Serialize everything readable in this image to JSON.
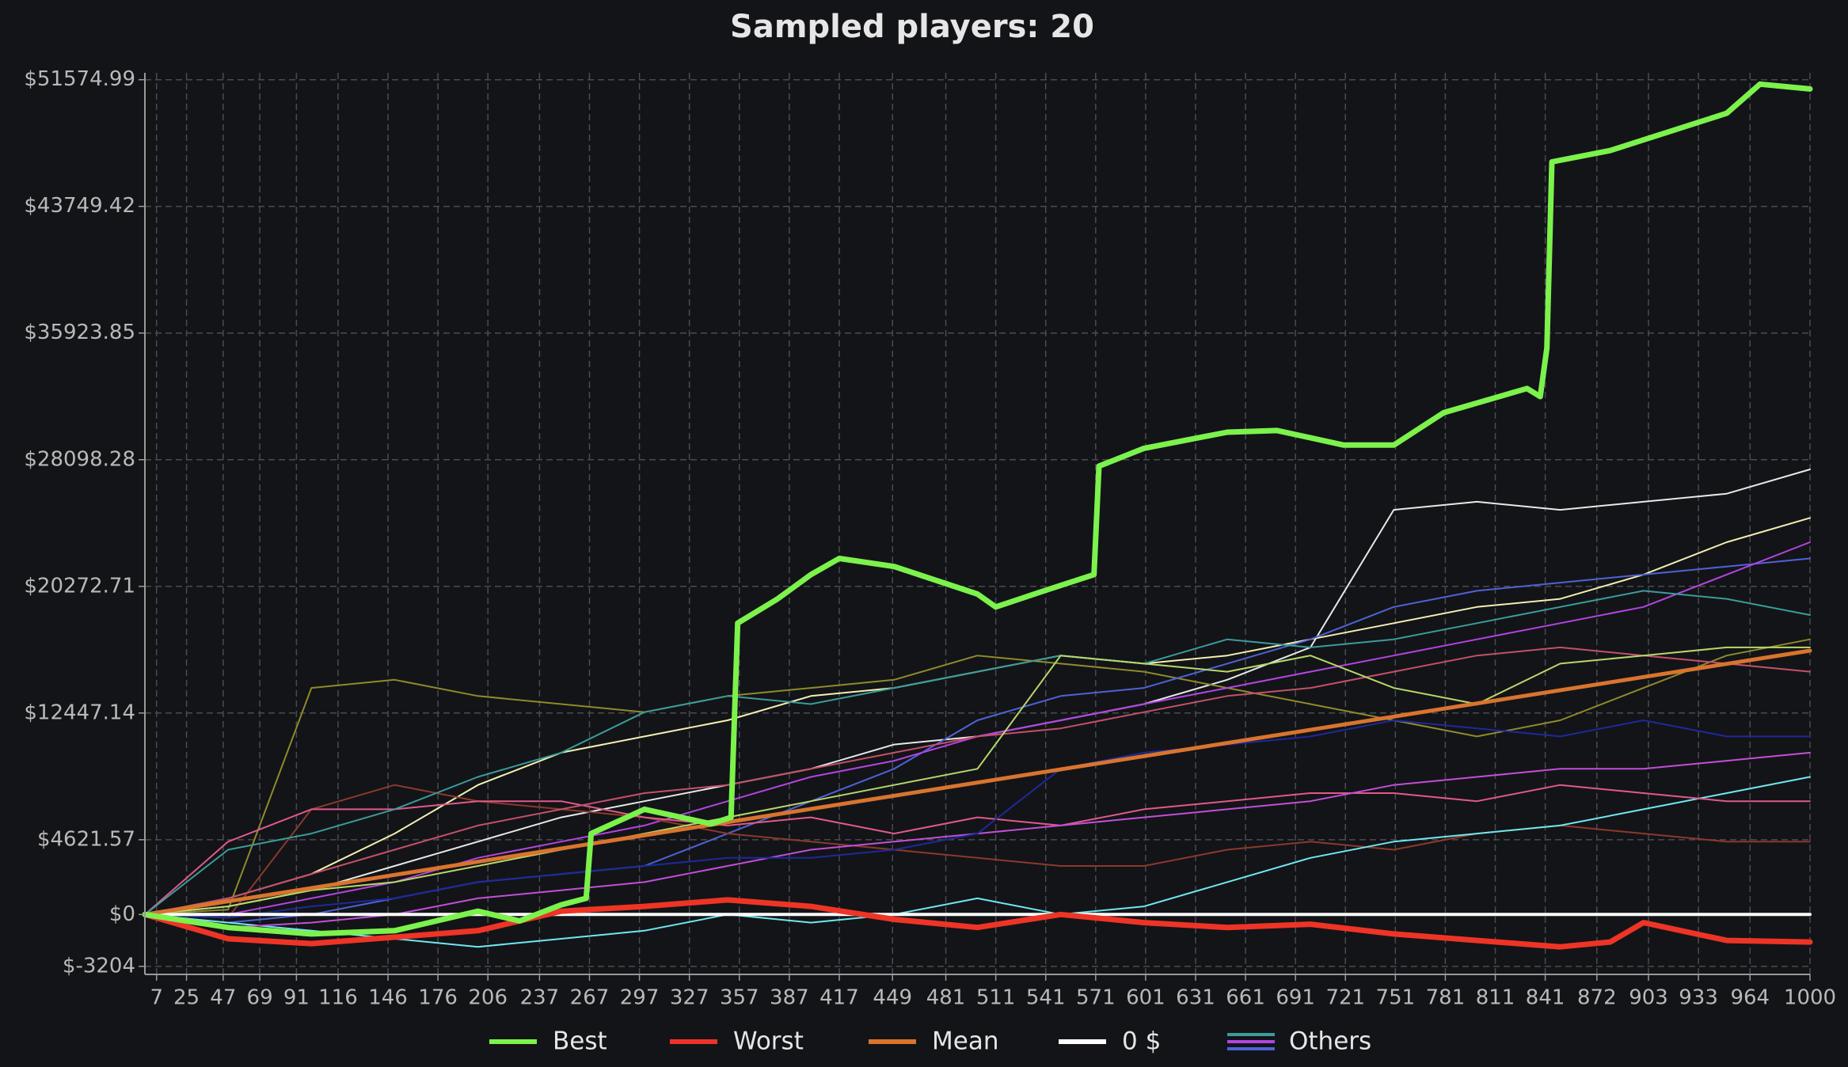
{
  "chart_data": {
    "type": "line",
    "title": "Sampled players: 20",
    "xlim": [
      0,
      1000
    ],
    "ylim": [
      -3700,
      52000
    ],
    "grid": true,
    "xticks": [
      7,
      25,
      47,
      69,
      91,
      116,
      146,
      176,
      206,
      237,
      267,
      297,
      327,
      357,
      387,
      417,
      449,
      481,
      511,
      541,
      571,
      601,
      631,
      661,
      691,
      721,
      751,
      781,
      811,
      841,
      872,
      903,
      933,
      964,
      1000
    ],
    "yticks": [
      {
        "value": -3204,
        "label": "$-3204"
      },
      {
        "value": 0,
        "label": "$0"
      },
      {
        "value": 4621.57,
        "label": "$4621.57"
      },
      {
        "value": 12447.14,
        "label": "$12447.14"
      },
      {
        "value": 20272.71,
        "label": "$20272.71"
      },
      {
        "value": 28098.28,
        "label": "$28098.28"
      },
      {
        "value": 35923.85,
        "label": "$35923.85"
      },
      {
        "value": 43749.42,
        "label": "$43749.42"
      },
      {
        "value": 51574.99,
        "label": "$51574.99"
      }
    ],
    "series": [
      {
        "name": "Best",
        "color": "#7cf24c",
        "width": 7,
        "x": [
          0,
          50,
          100,
          150,
          200,
          225,
          250,
          265,
          268,
          300,
          340,
          352,
          356,
          380,
          400,
          417,
          450,
          500,
          511,
          540,
          570,
          573,
          600,
          650,
          680,
          720,
          750,
          780,
          830,
          838,
          842,
          845,
          880,
          950,
          970,
          1000
        ],
        "values": [
          0,
          -800,
          -1200,
          -1000,
          200,
          -400,
          600,
          1000,
          5000,
          6500,
          5600,
          6000,
          18000,
          19500,
          21000,
          22000,
          21500,
          19800,
          19000,
          20000,
          21000,
          27700,
          28800,
          29800,
          29900,
          29000,
          29000,
          31000,
          32500,
          32000,
          35000,
          46500,
          47200,
          49500,
          51300,
          51000
        ]
      },
      {
        "name": "Worst",
        "color": "#ee3426",
        "width": 7,
        "x": [
          0,
          50,
          100,
          200,
          250,
          300,
          350,
          400,
          450,
          500,
          550,
          600,
          650,
          700,
          750,
          800,
          850,
          880,
          900,
          950,
          1000
        ],
        "values": [
          0,
          -1500,
          -1800,
          -1000,
          200,
          500,
          900,
          500,
          -300,
          -800,
          0,
          -500,
          -800,
          -600,
          -1200,
          -1600,
          -2000,
          -1700,
          -500,
          -1600,
          -1700
        ]
      },
      {
        "name": "Mean",
        "color": "#d9742e",
        "width": 5,
        "x": [
          0,
          1000
        ],
        "values": [
          0,
          16300
        ]
      },
      {
        "name": "0 $",
        "color": "#ffffff",
        "width": 4,
        "x": [
          0,
          1000
        ],
        "values": [
          0,
          0
        ]
      }
    ],
    "others": {
      "name": "Others",
      "x": [
        0,
        50,
        100,
        150,
        200,
        250,
        300,
        350,
        400,
        450,
        500,
        550,
        600,
        650,
        700,
        750,
        800,
        850,
        900,
        950,
        1000
      ],
      "lines": [
        {
          "color": "#e8e8e8",
          "values": [
            0,
            500,
            1500,
            3000,
            4500,
            6000,
            7000,
            8000,
            9000,
            10500,
            11000,
            12000,
            13000,
            14500,
            16500,
            25000,
            25500,
            25000,
            25500,
            26000,
            27500
          ]
        },
        {
          "color": "#f3f0b0",
          "values": [
            0,
            1000,
            2500,
            5000,
            8000,
            10000,
            11000,
            12000,
            13500,
            14000,
            15000,
            16000,
            15500,
            16000,
            17000,
            18000,
            19000,
            19500,
            21000,
            23000,
            24500
          ]
        },
        {
          "color": "#8f8a2c",
          "values": [
            0,
            300,
            14000,
            14500,
            13500,
            13000,
            12500,
            13500,
            14000,
            14500,
            16000,
            15500,
            15000,
            14000,
            13000,
            12000,
            11000,
            12000,
            14000,
            16000,
            17000
          ]
        },
        {
          "color": "#4d63d6",
          "values": [
            0,
            -500,
            0,
            1000,
            2000,
            2500,
            3000,
            5000,
            7000,
            9000,
            12000,
            13500,
            14000,
            15500,
            17000,
            19000,
            20000,
            20500,
            21000,
            21500,
            22000
          ]
        },
        {
          "color": "#b345e0",
          "values": [
            0,
            0,
            1000,
            2000,
            3500,
            4500,
            5500,
            7000,
            8500,
            9500,
            11000,
            12000,
            13000,
            14000,
            15000,
            16000,
            17000,
            18000,
            19000,
            21000,
            23000
          ]
        },
        {
          "color": "#8a3a2a",
          "values": [
            0,
            -200,
            6500,
            8000,
            7000,
            6500,
            6000,
            5000,
            4500,
            4000,
            3500,
            3000,
            3000,
            4000,
            4500,
            4000,
            5000,
            5500,
            5000,
            4500,
            4500
          ]
        },
        {
          "color": "#6fe8f0",
          "values": [
            0,
            -500,
            -1000,
            -1500,
            -2000,
            -1500,
            -1000,
            0,
            -500,
            0,
            1000,
            0,
            500,
            2000,
            3500,
            4500,
            5000,
            5500,
            6500,
            7500,
            8500
          ]
        },
        {
          "color": "#e05a8a",
          "values": [
            0,
            4500,
            6500,
            6500,
            7000,
            7000,
            6000,
            5500,
            6000,
            5000,
            6000,
            5500,
            6500,
            7000,
            7500,
            7500,
            7000,
            8000,
            7500,
            7000,
            7000
          ]
        },
        {
          "color": "#3a9c9c",
          "values": [
            0,
            4000,
            5000,
            6500,
            8500,
            10000,
            12500,
            13500,
            13000,
            14000,
            15000,
            16000,
            15500,
            17000,
            16500,
            17000,
            18000,
            19000,
            20000,
            19500,
            18500
          ]
        },
        {
          "color": "#c24fd8",
          "values": [
            0,
            -800,
            -500,
            0,
            1000,
            1500,
            2000,
            3000,
            4000,
            4500,
            5000,
            5500,
            6000,
            6500,
            7000,
            8000,
            8500,
            9000,
            9000,
            9500,
            10000
          ]
        },
        {
          "color": "#1d2a9a",
          "values": [
            0,
            -200,
            500,
            1000,
            2000,
            2500,
            3000,
            3500,
            3500,
            4000,
            5000,
            9000,
            10000,
            10500,
            11000,
            12000,
            11500,
            11000,
            12000,
            11000,
            11000
          ]
        },
        {
          "color": "#c4506a",
          "values": [
            0,
            1000,
            2500,
            4000,
            5500,
            6500,
            7500,
            8000,
            9000,
            10000,
            11000,
            11500,
            12500,
            13500,
            14000,
            15000,
            16000,
            16500,
            16000,
            15500,
            15000
          ]
        },
        {
          "color": "#b7d86a",
          "values": [
            0,
            500,
            1500,
            2000,
            3000,
            4000,
            5000,
            6000,
            7000,
            8000,
            9000,
            16000,
            15500,
            15000,
            16000,
            14000,
            13000,
            15500,
            16000,
            16500,
            16500
          ]
        }
      ]
    }
  }
}
